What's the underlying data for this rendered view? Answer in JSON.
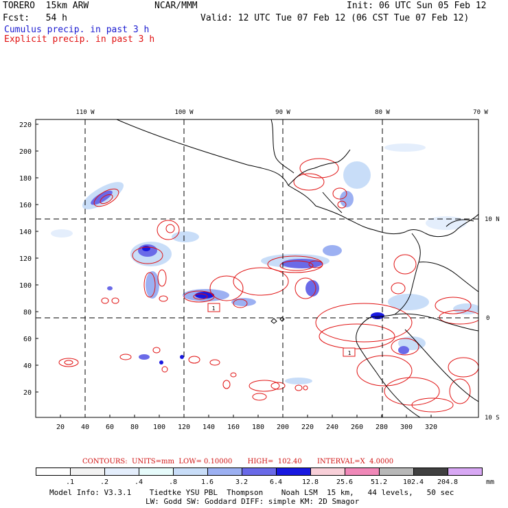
{
  "header": {
    "model": "TORERO  15km ARW",
    "org": "NCAR/MMM",
    "init": "Init: 06 UTC Sun 05 Feb 12",
    "fcst": "Fcst:   54 h",
    "valid": "Valid: 12 UTC Tue 07 Feb 12 (06 CST Tue 07 Feb 12)",
    "legend_cumulus": "Cumulus precip. in past 3 h",
    "legend_explicit": "Explicit precip. in past 3 h"
  },
  "map": {
    "lon_labels": [
      "110 W",
      "100 W",
      "90 W",
      "80 W",
      "70 W"
    ],
    "lat_labels": [
      "10 N",
      "0",
      "10 S"
    ],
    "y_ticks": [
      "220",
      "200",
      "180",
      "160",
      "140",
      "120",
      "100",
      "80",
      "60",
      "40",
      "20"
    ],
    "x_ticks": [
      "20",
      "40",
      "60",
      "80",
      "100",
      "120",
      "140",
      "160",
      "180",
      "200",
      "220",
      "240",
      "260",
      "280",
      "300",
      "320"
    ],
    "box_labels": [
      "1",
      "1"
    ]
  },
  "contours": {
    "text": "CONTOURS:  UNITS=mm  LOW= 0.10000       HIGH=  102.40       INTERVAL=X  4.0000"
  },
  "colorbar": {
    "labels": [
      ".1",
      ".2",
      ".4",
      ".8",
      "1.6",
      "3.2",
      "6.4",
      "12.8",
      "25.6",
      "51.2",
      "102.4",
      "204.8",
      "mm"
    ],
    "colors": [
      "#ffffff",
      "#f2f2f2",
      "#e4eefc",
      "#e6fbfb",
      "#c8ddf8",
      "#9cb0f2",
      "#6a6ae8",
      "#1818e0",
      "#f8cfd8",
      "#f088b8",
      "#b8b8b8",
      "#404040",
      "#d8a8f4"
    ]
  },
  "footer": {
    "line1": "Model Info: V3.3.1    Tiedtke YSU PBL  Thompson    Noah LSM  15 km,   44 levels,   50 sec",
    "line2": "LW: Godd SW: Goddard DIFF: simple KM: 2D Smagor"
  }
}
